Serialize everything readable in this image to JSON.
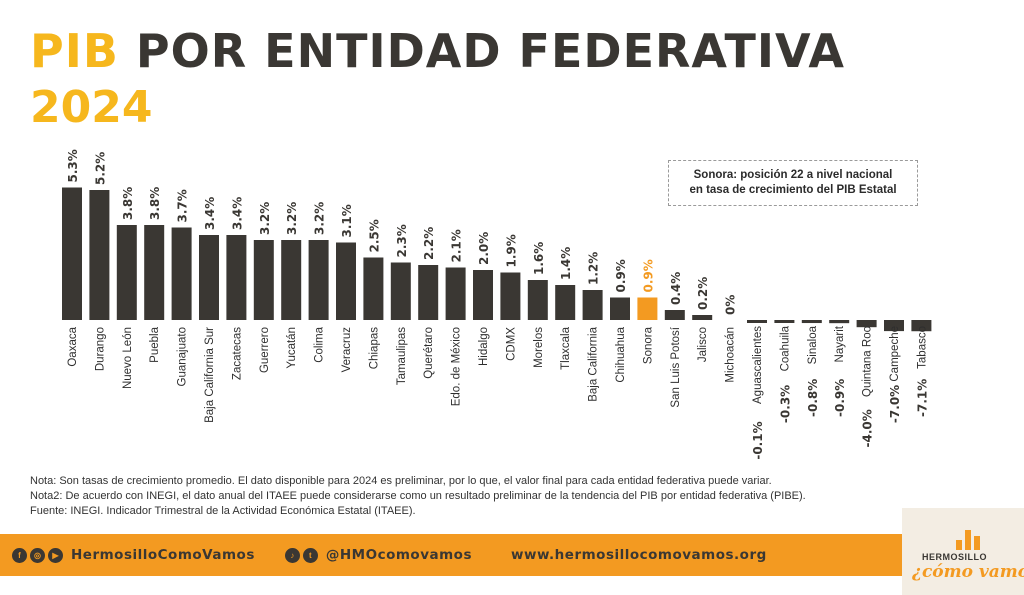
{
  "header": {
    "title_highlight": "PIB",
    "title_rest": "POR ENTIDAD FEDERATIVA",
    "year": "2024"
  },
  "callout": {
    "line1": "Sonora: posición 22 a nivel nacional",
    "line2": "en tasa de crecimiento del PIB Estatal"
  },
  "chart_data": {
    "type": "bar",
    "highlight": "Sonora",
    "colors": {
      "bar": "#3a3733",
      "highlight": "#f39a21",
      "label": "#3a3733"
    },
    "ylim": [
      -7.1,
      5.3
    ],
    "categories": [
      "Oaxaca",
      "Durango",
      "Nuevo León",
      "Puebla",
      "Guanajuato",
      "Baja California Sur",
      "Zacatecas",
      "Guerrero",
      "Yucatán",
      "Colima",
      "Veracruz",
      "Chiapas",
      "Tamaulipas",
      "Querétaro",
      "Edo. de México",
      "Hidalgo",
      "CDMX",
      "Morelos",
      "Tlaxcala",
      "Baja California",
      "Chihuahua",
      "Sonora",
      "San Luis Potosí",
      "Jalisco",
      "Michoacán",
      "Aguascalientes",
      "Coahuila",
      "Sinaloa",
      "Nayarit",
      "Quintana Roo",
      "Campeche",
      "Tabasco"
    ],
    "values": [
      5.3,
      5.2,
      3.8,
      3.8,
      3.7,
      3.4,
      3.4,
      3.2,
      3.2,
      3.2,
      3.1,
      2.5,
      2.3,
      2.2,
      2.1,
      2.0,
      1.9,
      1.6,
      1.4,
      1.2,
      0.9,
      0.9,
      0.4,
      0.2,
      0,
      -0.1,
      -0.3,
      -0.8,
      -0.9,
      -4.0,
      -7.0,
      -7.1
    ],
    "data_labels": [
      "5.3%",
      "5.2%",
      "3.8%",
      "3.8%",
      "3.7%",
      "3.4%",
      "3.4%",
      "3.2%",
      "3.2%",
      "3.2%",
      "3.1%",
      "2.5%",
      "2.3%",
      "2.2%",
      "2.1%",
      "2.0%",
      "1.9%",
      "1.6%",
      "1.4%",
      "1.2%",
      "0.9%",
      "0.9%",
      "0.4%",
      "0.2%",
      "0%",
      "-0.1%",
      "-0.3%",
      "-0.8%",
      "-0.9%",
      "-4.0%",
      "-7.0%",
      "-7.1%"
    ]
  },
  "notes": [
    "Nota: Son tasas de crecimiento promedio. El dato disponible para 2024 es preliminar, por lo que, el valor final para cada entidad federativa puede variar.",
    "Nota2: De acuerdo con INEGI, el dato anual del ITAEE puede considerarse como un resultado preliminar de la tendencia del PIB por entidad federativa (PIBE).",
    "Fuente: INEGI. Indicador Trimestral de la Actividad Económica Estatal (ITAEE)."
  ],
  "footer": {
    "handle_fb": "HermosilloComoVamos",
    "handle_tw": "@HMOcomovamos",
    "website": "www.hermosillocomovamos.org",
    "icons": [
      "facebook-icon",
      "instagram-icon",
      "youtube-icon",
      "tiktok-icon",
      "twitter-icon"
    ]
  },
  "logo": {
    "small": "HERMOSILLO",
    "big": "¿cómo vamos?"
  }
}
